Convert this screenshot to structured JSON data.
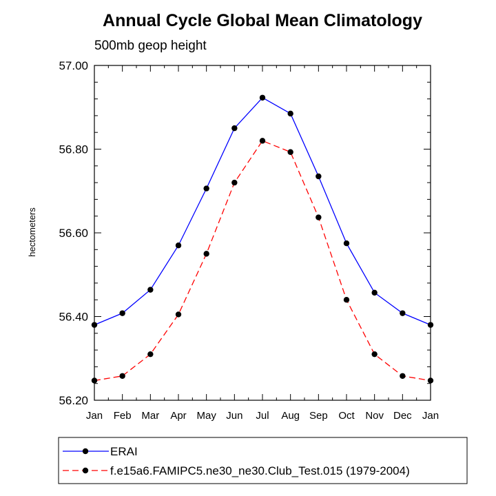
{
  "chart_data": {
    "type": "line",
    "title": "Annual Cycle Global Mean Climatology",
    "subtitle": "500mb geop height",
    "xlabel": "",
    "ylabel": "hectometers",
    "categories": [
      "Jan",
      "Feb",
      "Mar",
      "Apr",
      "May",
      "Jun",
      "Jul",
      "Aug",
      "Sep",
      "Oct",
      "Nov",
      "Dec",
      "Jan"
    ],
    "ylim": [
      56.2,
      57.0
    ],
    "yticks": [
      "56.20",
      "56.40",
      "56.60",
      "56.80",
      "57.00"
    ],
    "grid": false,
    "legend_position": "bottom",
    "series": [
      {
        "name": "ERAI",
        "color": "#0000ff",
        "dash": "solid",
        "marker": "circle",
        "values": [
          56.38,
          56.408,
          56.464,
          56.57,
          56.706,
          56.85,
          56.923,
          56.885,
          56.735,
          56.575,
          56.457,
          56.408,
          56.38
        ]
      },
      {
        "name": "f.e15a6.FAMIPC5.ne30_ne30.Club_Test.015 (1979-2004)",
        "color": "#ff0000",
        "dash": "dashed",
        "marker": "circle",
        "values": [
          56.247,
          56.258,
          56.31,
          56.405,
          56.55,
          56.72,
          56.82,
          56.793,
          56.637,
          56.44,
          56.31,
          56.258,
          56.247
        ]
      }
    ]
  }
}
